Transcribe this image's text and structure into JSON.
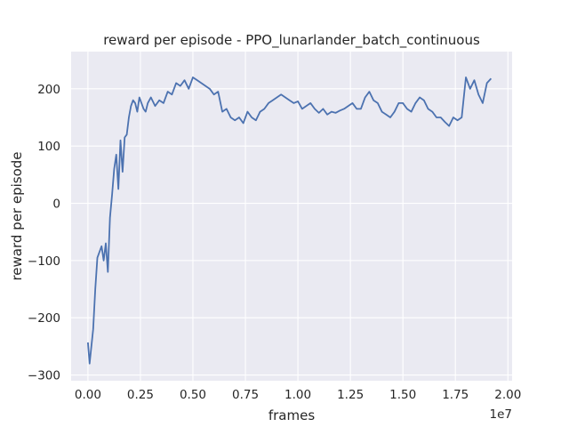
{
  "chart_data": {
    "type": "line",
    "title": "reward per episode - PPO_lunarlander_batch_continuous",
    "xlabel": "frames",
    "ylabel": "reward per episode",
    "x_offset_label": "1e7",
    "xlim": [
      -0.08,
      2.02
    ],
    "ylim": [
      -310,
      265
    ],
    "x_ticks": [
      0.0,
      0.25,
      0.5,
      0.75,
      1.0,
      1.25,
      1.5,
      1.75,
      2.0
    ],
    "x_tick_labels": [
      "0.00",
      "0.25",
      "0.50",
      "0.75",
      "1.00",
      "1.25",
      "1.50",
      "1.75",
      "2.00"
    ],
    "y_ticks": [
      -300,
      -200,
      -100,
      0,
      100,
      200
    ],
    "y_tick_labels": [
      "−300",
      "−200",
      "−100",
      "0",
      "100",
      "200"
    ],
    "grid": true,
    "colors": {
      "background": "#eaeaf2",
      "line": "#4c72b0",
      "grid": "#ffffff"
    },
    "series": [
      {
        "x": [
          0.0,
          0.008,
          0.015,
          0.025,
          0.035,
          0.045,
          0.055,
          0.065,
          0.075,
          0.085,
          0.095,
          0.105,
          0.115,
          0.125,
          0.135,
          0.145,
          0.155,
          0.165,
          0.175,
          0.185,
          0.195,
          0.205,
          0.215,
          0.225,
          0.235,
          0.245,
          0.255,
          0.265,
          0.275,
          0.285,
          0.3,
          0.32,
          0.34,
          0.36,
          0.38,
          0.4,
          0.42,
          0.44,
          0.46,
          0.48,
          0.5,
          0.52,
          0.54,
          0.56,
          0.58,
          0.6,
          0.62,
          0.64,
          0.66,
          0.68,
          0.7,
          0.72,
          0.74,
          0.76,
          0.78,
          0.8,
          0.82,
          0.84,
          0.86,
          0.88,
          0.9,
          0.92,
          0.94,
          0.96,
          0.98,
          1.0,
          1.02,
          1.04,
          1.06,
          1.08,
          1.1,
          1.12,
          1.14,
          1.16,
          1.18,
          1.2,
          1.22,
          1.24,
          1.26,
          1.28,
          1.3,
          1.32,
          1.34,
          1.36,
          1.38,
          1.4,
          1.42,
          1.44,
          1.46,
          1.48,
          1.5,
          1.52,
          1.54,
          1.56,
          1.58,
          1.6,
          1.62,
          1.64,
          1.66,
          1.68,
          1.7,
          1.72,
          1.74,
          1.76,
          1.78,
          1.8,
          1.82,
          1.84,
          1.86,
          1.88,
          1.9,
          1.92
        ],
        "y": [
          -243,
          -280,
          -255,
          -220,
          -150,
          -95,
          -85,
          -75,
          -100,
          -70,
          -120,
          -25,
          15,
          60,
          85,
          25,
          110,
          55,
          115,
          120,
          150,
          170,
          180,
          175,
          160,
          185,
          175,
          165,
          160,
          175,
          185,
          170,
          180,
          175,
          195,
          190,
          210,
          205,
          215,
          200,
          220,
          215,
          210,
          205,
          200,
          190,
          195,
          160,
          165,
          150,
          145,
          150,
          140,
          160,
          150,
          145,
          160,
          165,
          175,
          180,
          185,
          190,
          185,
          180,
          175,
          178,
          165,
          170,
          175,
          165,
          158,
          165,
          155,
          160,
          158,
          162,
          165,
          170,
          175,
          165,
          165,
          185,
          195,
          180,
          175,
          160,
          155,
          150,
          160,
          175,
          175,
          165,
          160,
          175,
          185,
          180,
          165,
          160,
          150,
          150,
          142,
          135,
          150,
          145,
          150,
          220,
          200,
          215,
          190,
          175,
          210,
          218
        ]
      }
    ]
  }
}
